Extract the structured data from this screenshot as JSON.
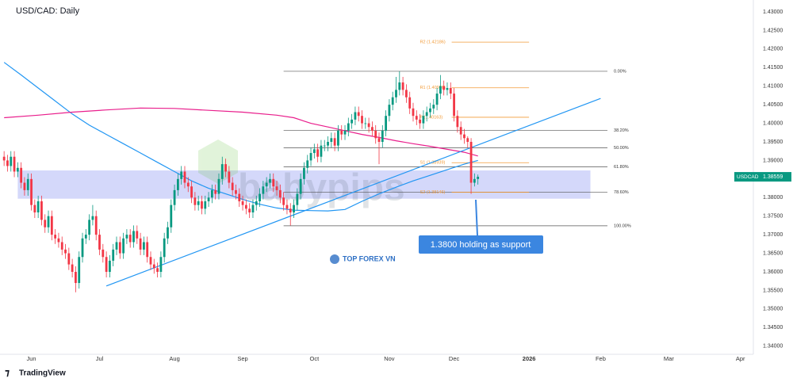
{
  "header": {
    "title": "USD/CAD: Daily"
  },
  "footer": {
    "brand": "TradingView"
  },
  "chart_data": {
    "type": "candlestick",
    "up_color": "#089981",
    "down_color": "#f23645",
    "open": [
      1.391,
      1.39,
      1.3885,
      1.391,
      1.387,
      1.388,
      1.384,
      1.382,
      1.385,
      1.378,
      1.376,
      1.379,
      1.374,
      1.372,
      1.375,
      1.37,
      1.369,
      1.368,
      1.366,
      1.365,
      1.362,
      1.36,
      1.357,
      1.364,
      1.369,
      1.37,
      1.374,
      1.375,
      1.37,
      1.366,
      1.364,
      1.36,
      1.363,
      1.366,
      1.368,
      1.365,
      1.369,
      1.37,
      1.368,
      1.371,
      1.369,
      1.366,
      1.368,
      1.364,
      1.362,
      1.361,
      1.36,
      1.364,
      1.369,
      1.372,
      1.378,
      1.382,
      1.385,
      1.387,
      1.384,
      1.383,
      1.38,
      1.378,
      1.379,
      1.377,
      1.379,
      1.38,
      1.382,
      1.381,
      1.385,
      1.389,
      1.387,
      1.384,
      1.382,
      1.381,
      1.379,
      1.378,
      1.377,
      1.376,
      1.378,
      1.379,
      1.381,
      1.383,
      1.384,
      1.385,
      1.383,
      1.382,
      1.38,
      1.378,
      1.377,
      1.376,
      1.378,
      1.381,
      1.385,
      1.388,
      1.39,
      1.392,
      1.393,
      1.391,
      1.394,
      1.394,
      1.395,
      1.396,
      1.394,
      1.398,
      1.397,
      1.398,
      1.4,
      1.401,
      1.403,
      1.402,
      1.4,
      1.4,
      1.399,
      1.398,
      1.396,
      1.395,
      1.398,
      1.402,
      1.405,
      1.407,
      1.409,
      1.411,
      1.409,
      1.407,
      1.404,
      1.402,
      1.401,
      1.4,
      1.402,
      1.403,
      1.404,
      1.405,
      1.408,
      1.41,
      1.409,
      1.4095,
      1.408,
      1.402,
      1.399,
      1.397,
      1.396,
      1.395,
      1.384,
      1.385
    ],
    "high": [
      1.3925,
      1.3915,
      1.3925,
      1.3925,
      1.3895,
      1.3895,
      1.3855,
      1.3865,
      1.3865,
      1.3795,
      1.3805,
      1.3805,
      1.3755,
      1.3765,
      1.3765,
      1.3715,
      1.3705,
      1.3695,
      1.3675,
      1.3665,
      1.3635,
      1.3615,
      1.3655,
      1.3705,
      1.3715,
      1.3755,
      1.378,
      1.3765,
      1.3715,
      1.3675,
      1.3655,
      1.3645,
      1.3675,
      1.3695,
      1.3695,
      1.3705,
      1.3715,
      1.3715,
      1.3725,
      1.3725,
      1.3705,
      1.3695,
      1.3695,
      1.3655,
      1.3635,
      1.3625,
      1.3655,
      1.3705,
      1.3735,
      1.3795,
      1.3835,
      1.3865,
      1.3885,
      1.3885,
      1.3855,
      1.3845,
      1.3815,
      1.3805,
      1.3805,
      1.3805,
      1.3815,
      1.3835,
      1.3835,
      1.3865,
      1.391,
      1.3905,
      1.3885,
      1.3855,
      1.3835,
      1.3825,
      1.3805,
      1.3795,
      1.3785,
      1.3795,
      1.3805,
      1.3825,
      1.3845,
      1.3855,
      1.3865,
      1.3865,
      1.3845,
      1.3835,
      1.3815,
      1.3795,
      1.3785,
      1.3795,
      1.3825,
      1.3865,
      1.3895,
      1.3915,
      1.3935,
      1.3945,
      1.3945,
      1.3955,
      1.3955,
      1.3965,
      1.3975,
      1.3975,
      1.3995,
      1.3995,
      1.3995,
      1.4015,
      1.4025,
      1.4045,
      1.4045,
      1.4035,
      1.4015,
      1.4015,
      1.4005,
      1.3995,
      1.3975,
      1.3995,
      1.4035,
      1.4065,
      1.4085,
      1.4125,
      1.414,
      1.4125,
      1.4105,
      1.4085,
      1.4055,
      1.4035,
      1.4025,
      1.4035,
      1.4045,
      1.4055,
      1.4065,
      1.4095,
      1.413,
      1.4115,
      1.411,
      1.411,
      1.4095,
      1.4035,
      1.4005,
      1.3985,
      1.3965,
      1.396,
      1.3865,
      1.3862
    ],
    "low": [
      1.3885,
      1.387,
      1.387,
      1.3855,
      1.3855,
      1.3825,
      1.3805,
      1.3805,
      1.3765,
      1.3745,
      1.3745,
      1.3725,
      1.3705,
      1.3705,
      1.3685,
      1.3675,
      1.3665,
      1.3645,
      1.3635,
      1.3605,
      1.3585,
      1.3545,
      1.3555,
      1.3625,
      1.3675,
      1.3685,
      1.3725,
      1.3685,
      1.3645,
      1.3625,
      1.3585,
      1.3585,
      1.3615,
      1.3645,
      1.3635,
      1.3635,
      1.3675,
      1.3665,
      1.3665,
      1.3675,
      1.3645,
      1.3645,
      1.3625,
      1.3605,
      1.3595,
      1.3585,
      1.3585,
      1.3625,
      1.3675,
      1.3705,
      1.3765,
      1.3805,
      1.3835,
      1.3825,
      1.3815,
      1.3785,
      1.3765,
      1.3765,
      1.3755,
      1.3755,
      1.3775,
      1.3785,
      1.3795,
      1.3795,
      1.3835,
      1.3855,
      1.3825,
      1.3805,
      1.3795,
      1.3775,
      1.3765,
      1.3755,
      1.3745,
      1.3745,
      1.3765,
      1.3775,
      1.3795,
      1.3815,
      1.3825,
      1.3815,
      1.3805,
      1.3785,
      1.3765,
      1.3755,
      1.3725,
      1.3745,
      1.3765,
      1.3795,
      1.3835,
      1.3865,
      1.3885,
      1.3905,
      1.3895,
      1.3895,
      1.3925,
      1.3925,
      1.3935,
      1.3925,
      1.3925,
      1.3955,
      1.3955,
      1.3965,
      1.3985,
      1.3995,
      1.4005,
      1.3985,
      1.3985,
      1.3975,
      1.3965,
      1.3945,
      1.389,
      1.3935,
      1.3965,
      1.4005,
      1.4035,
      1.4055,
      1.4075,
      1.4075,
      1.4055,
      1.4025,
      1.4005,
      1.3995,
      1.3985,
      1.3985,
      1.4005,
      1.4015,
      1.4025,
      1.4035,
      1.4065,
      1.4075,
      1.4075,
      1.4065,
      1.4005,
      1.3975,
      1.3955,
      1.3945,
      1.3935,
      1.381,
      1.383,
      1.3835
    ],
    "close": [
      1.39,
      1.3885,
      1.391,
      1.387,
      1.388,
      1.384,
      1.382,
      1.385,
      1.378,
      1.376,
      1.379,
      1.374,
      1.372,
      1.375,
      1.37,
      1.369,
      1.368,
      1.366,
      1.365,
      1.362,
      1.36,
      1.357,
      1.364,
      1.369,
      1.37,
      1.374,
      1.375,
      1.37,
      1.366,
      1.364,
      1.36,
      1.363,
      1.366,
      1.368,
      1.365,
      1.369,
      1.37,
      1.368,
      1.371,
      1.369,
      1.366,
      1.368,
      1.364,
      1.362,
      1.361,
      1.36,
      1.364,
      1.369,
      1.372,
      1.378,
      1.382,
      1.385,
      1.387,
      1.384,
      1.383,
      1.38,
      1.378,
      1.379,
      1.377,
      1.379,
      1.38,
      1.382,
      1.381,
      1.385,
      1.389,
      1.387,
      1.384,
      1.382,
      1.381,
      1.379,
      1.378,
      1.377,
      1.376,
      1.378,
      1.379,
      1.381,
      1.383,
      1.384,
      1.385,
      1.383,
      1.382,
      1.38,
      1.378,
      1.377,
      1.376,
      1.378,
      1.381,
      1.385,
      1.388,
      1.39,
      1.392,
      1.393,
      1.391,
      1.394,
      1.394,
      1.395,
      1.396,
      1.394,
      1.398,
      1.397,
      1.398,
      1.4,
      1.401,
      1.403,
      1.402,
      1.4,
      1.4,
      1.399,
      1.398,
      1.396,
      1.395,
      1.398,
      1.402,
      1.405,
      1.407,
      1.409,
      1.411,
      1.409,
      1.407,
      1.404,
      1.402,
      1.401,
      1.4,
      1.402,
      1.403,
      1.404,
      1.405,
      1.408,
      1.41,
      1.409,
      1.4095,
      1.408,
      1.402,
      1.399,
      1.397,
      1.396,
      1.395,
      1.384,
      1.385,
      1.3856
    ],
    "xlim": [
      -1.2,
      219.8
    ],
    "xticks": [
      {
        "value": 8,
        "label": "Jun"
      },
      {
        "value": 28,
        "label": "Jul"
      },
      {
        "value": 50,
        "label": "Aug"
      },
      {
        "value": 70,
        "label": "Sep"
      },
      {
        "value": 91,
        "label": "Oct"
      },
      {
        "value": 113,
        "label": "Nov"
      },
      {
        "value": 132,
        "label": "Dec"
      },
      {
        "value": 154,
        "label": "2026"
      },
      {
        "value": 175,
        "label": "Feb"
      },
      {
        "value": 195,
        "label": "Mar"
      },
      {
        "value": 216,
        "label": "Apr"
      }
    ],
    "ylim": [
      1.3378,
      1.4332
    ],
    "yticks": [
      {
        "value": 1.34,
        "label": "1.34000"
      },
      {
        "value": 1.345,
        "label": "1.34500"
      },
      {
        "value": 1.35,
        "label": "1.35000"
      },
      {
        "value": 1.355,
        "label": "1.35500"
      },
      {
        "value": 1.36,
        "label": "1.36000"
      },
      {
        "value": 1.365,
        "label": "1.36500"
      },
      {
        "value": 1.37,
        "label": "1.37000"
      },
      {
        "value": 1.375,
        "label": "1.37500"
      },
      {
        "value": 1.38,
        "label": "1.38000"
      },
      {
        "value": 1.385,
        "label": "1.38500"
      },
      {
        "value": 1.39,
        "label": "1.39000"
      },
      {
        "value": 1.395,
        "label": "1.39500"
      },
      {
        "value": 1.4,
        "label": "1.40000"
      },
      {
        "value": 1.405,
        "label": "1.40500"
      },
      {
        "value": 1.41,
        "label": "1.41000"
      },
      {
        "value": 1.415,
        "label": "1.41500"
      },
      {
        "value": 1.42,
        "label": "1.42000"
      },
      {
        "value": 1.425,
        "label": "1.42500"
      },
      {
        "value": 1.43,
        "label": "1.43000"
      }
    ],
    "moving_averages": [
      {
        "color": "#2196f3",
        "x": [
          0,
          5,
          10,
          15,
          20,
          25,
          30,
          35,
          40,
          45,
          50,
          55,
          60,
          65,
          70,
          75,
          80,
          85,
          90,
          95,
          100,
          105,
          110,
          115,
          120,
          125,
          130,
          135,
          139
        ],
        "values": [
          1.4164,
          1.413,
          1.4095,
          1.406,
          1.4025,
          1.3995,
          1.397,
          1.3945,
          1.392,
          1.3895,
          1.387,
          1.3845,
          1.3825,
          1.381,
          1.3795,
          1.3782,
          1.3772,
          1.3766,
          1.3765,
          1.3764,
          1.3768,
          1.379,
          1.381,
          1.3828,
          1.3845,
          1.386,
          1.3875,
          1.389,
          1.39
        ]
      },
      {
        "color": "#e91e8c",
        "x": [
          0,
          10,
          20,
          30,
          40,
          50,
          60,
          70,
          80,
          85,
          90,
          95,
          100,
          105,
          110,
          115,
          120,
          125,
          130,
          135,
          139
        ],
        "values": [
          1.4015,
          1.4022,
          1.403,
          1.4036,
          1.4041,
          1.404,
          1.4035,
          1.403,
          1.4022,
          1.4015,
          1.4,
          1.399,
          1.398,
          1.397,
          1.3962,
          1.3953,
          1.3945,
          1.3938,
          1.393,
          1.3922,
          1.3912
        ]
      }
    ],
    "trendline": {
      "color": "#2196f3",
      "x": [
        30,
        175
      ],
      "values": [
        1.3562,
        1.4067
      ]
    },
    "fib": {
      "color": "#555555",
      "x": [
        82,
        177
      ],
      "levels": [
        {
          "label": "0.00%",
          "value": 1.414
        },
        {
          "label": "38.20%",
          "value": 1.3981
        },
        {
          "label": "50.00%",
          "value": 1.3934
        },
        {
          "label": "61.80%",
          "value": 1.3883
        },
        {
          "label": "78.60%",
          "value": 1.3814
        },
        {
          "label": "100.00%",
          "value": 1.3724
        }
      ]
    },
    "pivots": {
      "color": "#f29b38",
      "x": [
        122,
        154
      ],
      "levels": [
        {
          "label": "R2 (1.42186)",
          "value": 1.42186
        },
        {
          "label": "R1 (1.40956)",
          "value": 1.40956
        },
        {
          "label": "P (1.40163)",
          "value": 1.40163
        },
        {
          "label": "S1 (1.38939)",
          "value": 1.38939
        },
        {
          "label": "S2 (1.38146)",
          "value": 1.38146
        }
      ]
    },
    "zone": {
      "color": "#6f7ff0",
      "x": [
        4,
        172
      ],
      "values": [
        1.3873,
        1.3797
      ]
    },
    "price_tag": {
      "name": "USDCAD",
      "value": 1.38559,
      "color": "#089981"
    },
    "annotation": "1.3800 holding as support",
    "watermarks": [
      "babypips",
      "TOP FOREX VN"
    ]
  }
}
